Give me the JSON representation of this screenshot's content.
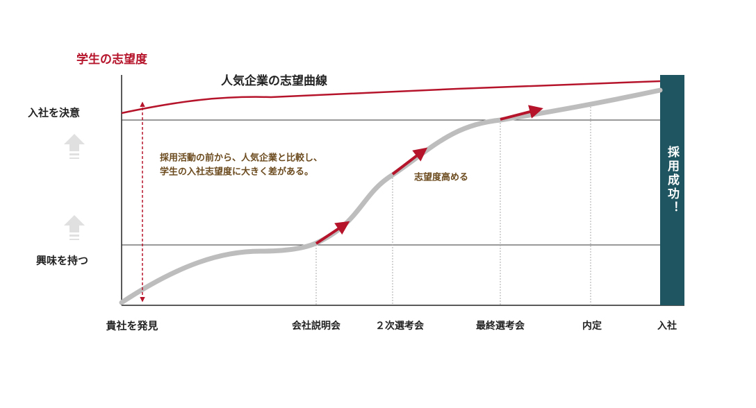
{
  "y_axis": {
    "title": "学生の志望度",
    "levels": [
      "入社を決意",
      "興味を持つ"
    ]
  },
  "curve_label": "人気企業の志望曲線",
  "annotation": [
    "採用活動の前から、人気企業と比較し、",
    "学生の入社志望度に大きく差がある。"
  ],
  "boost_label": "志望度高める",
  "x_axis": {
    "stages": [
      "貴社を発見",
      "会社説明会",
      "２次選考会",
      "最終選考会",
      "内定",
      "入社"
    ]
  },
  "success_label": "採用成功！"
}
